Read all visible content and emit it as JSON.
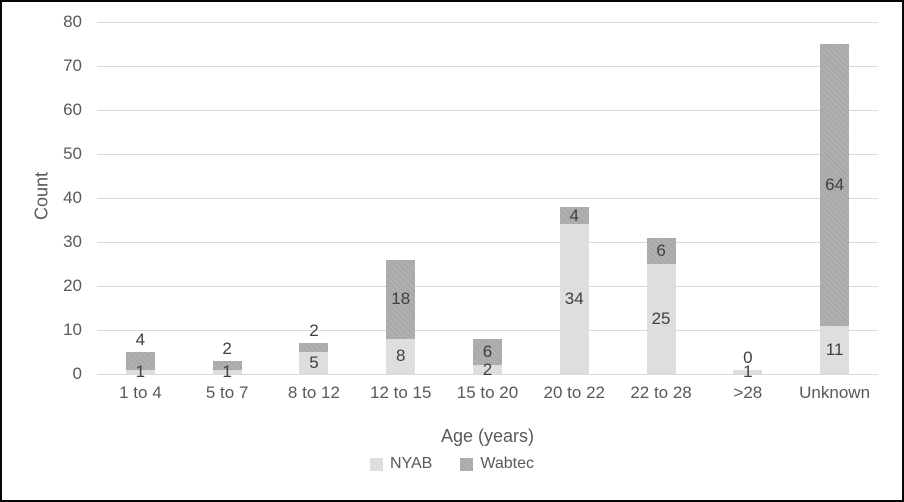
{
  "chart_data": {
    "type": "bar",
    "stacked": true,
    "categories": [
      "1 to 4",
      "5 to 7",
      "8 to 12",
      "12 to 15",
      "15 to 20",
      "20 to 22",
      "22 to 28",
      ">28",
      "Unknown"
    ],
    "series": [
      {
        "name": "NYAB",
        "color": "#dedede",
        "values": [
          1,
          1,
          5,
          8,
          2,
          34,
          25,
          1,
          11
        ]
      },
      {
        "name": "Wabtec",
        "color": "#acacac",
        "values": [
          4,
          2,
          2,
          18,
          6,
          4,
          6,
          0,
          64
        ]
      }
    ],
    "title": "",
    "xlabel": "Age (years)",
    "ylabel": "Count",
    "ylim": [
      0,
      80
    ],
    "ytick_step": 10,
    "grid": true,
    "legend_position": "bottom"
  },
  "colors": {
    "gridline": "#d9d9d9",
    "axis_text": "#595959",
    "data_label_text": "#404040",
    "frame_border": "#060606",
    "background": "#ffffff"
  }
}
